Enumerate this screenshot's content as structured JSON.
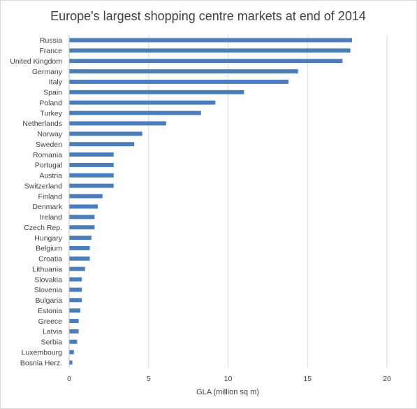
{
  "chart_data": {
    "type": "bar",
    "orientation": "horizontal",
    "title": "Europe's largest shopping centre markets at end of 2014",
    "xlabel": "GLA (million sq m)",
    "ylabel": "",
    "xlim": [
      0,
      20
    ],
    "x_ticks": [
      "0",
      "5",
      "10",
      "15",
      "20"
    ],
    "grid": true,
    "legend": "none",
    "bar_color": "#4a7ebb",
    "categories": [
      "Russia",
      "France",
      "United Kingdom",
      "Germany",
      "Italy",
      "Spain",
      "Poland",
      "Turkey",
      "Netherlands",
      "Norway",
      "Sweden",
      "Romania",
      "Portugal",
      "Austria",
      "Switzerland",
      "Finland",
      "Denmark",
      "Ireland",
      "Czech Rep.",
      "Hungary",
      "Belgium",
      "Croatia",
      "Lithuania",
      "Slovakia",
      "Slovenia",
      "Bulgaria",
      "Estonia",
      "Greece",
      "Latvia",
      "Serbia",
      "Luxembourg",
      "Bosnia Herz."
    ],
    "values": [
      17.8,
      17.7,
      17.2,
      14.4,
      13.8,
      11.0,
      9.2,
      8.3,
      6.1,
      4.6,
      4.1,
      2.8,
      2.8,
      2.8,
      2.8,
      2.1,
      1.8,
      1.6,
      1.6,
      1.4,
      1.3,
      1.3,
      1.0,
      0.8,
      0.8,
      0.8,
      0.7,
      0.6,
      0.6,
      0.5,
      0.3,
      0.2
    ]
  }
}
